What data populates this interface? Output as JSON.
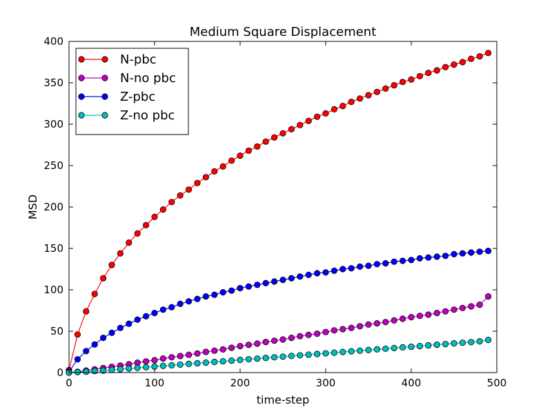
{
  "chart_data": {
    "type": "line",
    "title": "Medium Square Displacement",
    "xlabel": "time-step",
    "ylabel": "MSD",
    "xlim": [
      0,
      500
    ],
    "ylim": [
      0,
      400
    ],
    "x_ticks": [
      "0",
      "100",
      "200",
      "300",
      "400",
      "500"
    ],
    "y_ticks": [
      "0",
      "50",
      "100",
      "150",
      "200",
      "250",
      "300",
      "350",
      "400"
    ],
    "grid": false,
    "legend_position": "top-left",
    "x": [
      0,
      10,
      20,
      30,
      40,
      50,
      60,
      70,
      80,
      90,
      100,
      110,
      120,
      130,
      140,
      150,
      160,
      170,
      180,
      190,
      200,
      210,
      220,
      230,
      240,
      250,
      260,
      270,
      280,
      290,
      300,
      310,
      320,
      330,
      340,
      350,
      360,
      370,
      380,
      390,
      400,
      410,
      420,
      430,
      440,
      450,
      460,
      470,
      480,
      490
    ],
    "series": [
      {
        "name": "N-pbc",
        "color": "#ff0000",
        "values": [
          3,
          46,
          74,
          95,
          114,
          130,
          144,
          157,
          168,
          178,
          188,
          197,
          206,
          214,
          221,
          229,
          236,
          243,
          249,
          256,
          262,
          268,
          273,
          279,
          284,
          289,
          294,
          299,
          304,
          309,
          313,
          318,
          322,
          327,
          331,
          335,
          339,
          343,
          347,
          351,
          354,
          358,
          362,
          365,
          369,
          372,
          375,
          379,
          382,
          386
        ]
      },
      {
        "name": "N-no pbc",
        "color": "#bf00bf",
        "values": [
          0,
          1,
          2.5,
          4,
          5.5,
          7,
          8.5,
          10,
          12,
          13.5,
          15,
          17,
          18.5,
          20,
          21.5,
          23,
          25,
          26.5,
          28,
          30,
          32,
          33.5,
          35,
          37,
          38.5,
          40,
          42,
          44,
          45.5,
          47,
          49,
          51,
          52.5,
          54,
          56,
          58,
          59.5,
          61,
          63,
          65,
          67,
          68.5,
          70,
          72,
          74,
          76,
          78,
          80,
          82,
          92
        ]
      },
      {
        "name": "Z-pbc",
        "color": "#0000ff",
        "values": [
          1,
          16,
          26,
          34,
          42,
          48,
          54,
          59,
          64,
          68,
          72,
          76,
          79,
          83,
          86,
          89,
          92,
          94,
          97,
          99,
          102,
          104,
          106,
          108,
          110,
          112,
          114,
          116,
          118,
          120,
          121,
          123,
          125,
          126,
          128,
          129,
          131,
          132,
          134,
          135,
          136,
          138,
          139,
          140,
          141,
          143,
          144,
          145,
          146,
          147
        ]
      },
      {
        "name": "Z-no pbc",
        "color": "#00bfbf",
        "values": [
          0,
          0.5,
          1,
          1.8,
          2.5,
          3.3,
          4.1,
          4.9,
          5.7,
          6.5,
          7.3,
          8.1,
          8.9,
          9.7,
          10.5,
          11.3,
          12.1,
          12.9,
          13.7,
          14.5,
          15.3,
          16.1,
          16.9,
          17.7,
          18.5,
          19.3,
          20.1,
          20.9,
          21.7,
          22.5,
          23.3,
          24.1,
          24.9,
          25.7,
          26.5,
          27.3,
          28.1,
          28.9,
          29.7,
          30.5,
          31.3,
          32.1,
          32.9,
          33.7,
          34.5,
          35.3,
          36.1,
          36.9,
          37.7,
          39.5
        ]
      }
    ]
  }
}
